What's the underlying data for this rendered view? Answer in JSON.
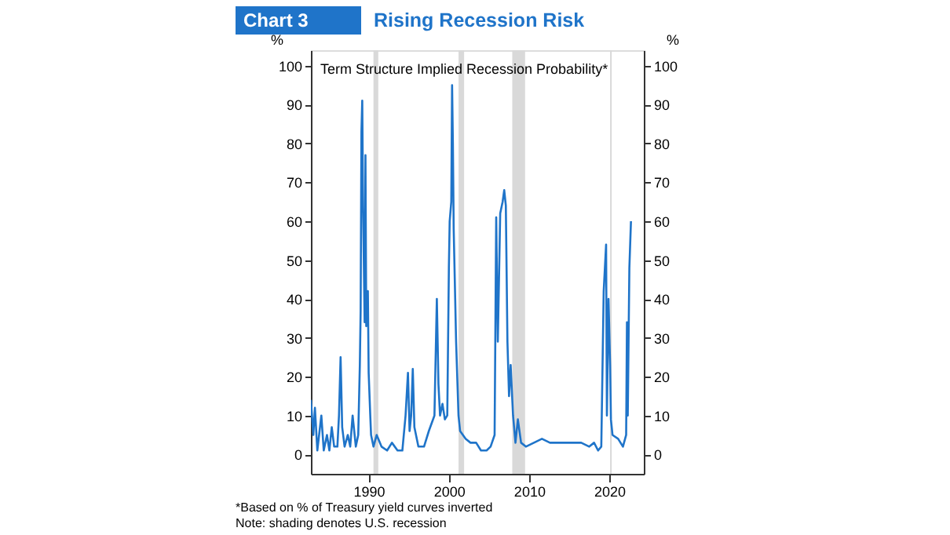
{
  "chart_data": {
    "type": "line",
    "title": "Rising Recession Risk",
    "subtitle": "Term Structure Implied Recession Probability*",
    "ylabel": "%",
    "y2label": "%",
    "annotations": [
      "Chart 3",
      "*Based on % of Treasury yield curves inverted",
      "Note: shading denotes U.S. recession"
    ],
    "series": [
      {
        "color": "#1f74c9",
        "x": [
          1982.8,
          1983.1,
          1983.3,
          1983.6,
          1984.1,
          1984.4,
          1984.8,
          1985.1,
          1985.4,
          1985.7,
          1986.1,
          1986.3,
          1986.5,
          1986.7,
          1987.0,
          1987.4,
          1987.7,
          1988.0,
          1988.4,
          1988.7,
          1988.9,
          1989.0,
          1989.1,
          1989.2,
          1989.3,
          1989.5,
          1989.6,
          1989.7,
          1989.9,
          1990.0,
          1990.2,
          1990.3,
          1990.6,
          1991.0,
          1991.6,
          1992.3,
          1992.9,
          1993.6,
          1994.2,
          1994.6,
          1994.9,
          1995.1,
          1995.3,
          1995.5,
          1995.7,
          1996.2,
          1996.9,
          1997.5,
          1998.2,
          1998.5,
          1998.7,
          1998.9,
          1999.2,
          1999.5,
          1999.8,
          2000.0,
          2000.1,
          2000.3,
          2000.4,
          2000.5,
          2000.6,
          2000.9,
          2001.2,
          2001.4,
          2002.1,
          2002.7,
          2003.4,
          2004.0,
          2004.7,
          2005.2,
          2005.7,
          2005.9,
          2006.1,
          2006.4,
          2006.7,
          2006.9,
          2007.1,
          2007.3,
          2007.5,
          2007.7,
          2008.0,
          2008.3,
          2008.6,
          2009.0,
          2009.6,
          2010.6,
          2011.6,
          2012.6,
          2013.9,
          2015.2,
          2016.5,
          2017.5,
          2018.1,
          2018.6,
          2019.0,
          2019.3,
          2019.6,
          2019.7,
          2019.9,
          2020.1,
          2020.2,
          2020.4,
          2021.1,
          2021.7,
          2022.1,
          2022.2,
          2022.3,
          2022.5,
          2022.7
        ],
        "values": [
          14,
          5,
          12,
          1,
          10,
          1,
          5,
          1,
          7,
          2,
          2,
          10,
          25,
          7,
          2,
          5,
          2,
          10,
          2,
          5,
          23,
          37,
          83,
          91,
          64,
          34,
          77,
          33,
          42,
          21,
          10,
          5,
          2,
          5,
          2,
          1,
          3,
          1,
          1,
          10,
          21,
          6,
          10,
          22,
          7,
          2,
          2,
          6,
          10,
          40,
          18,
          10,
          13,
          9,
          10,
          48,
          60,
          65,
          95,
          80,
          58,
          29,
          10,
          6,
          4,
          3,
          3,
          1,
          1,
          2,
          5,
          61,
          29,
          62,
          65,
          68,
          64,
          29,
          15,
          23,
          10,
          3,
          9,
          3,
          2,
          3,
          4,
          3,
          3,
          3,
          3,
          2,
          3,
          1,
          2,
          42,
          54,
          10,
          40,
          23,
          9,
          5,
          4,
          2,
          5,
          34,
          10,
          48,
          60
        ]
      }
    ],
    "xlim": [
      1982.8,
      2024.3
    ],
    "xticks": [
      1990,
      2000,
      2010,
      2020
    ],
    "ylim": [
      -5,
      104
    ],
    "yticks": [
      0,
      10,
      20,
      30,
      40,
      50,
      60,
      70,
      80,
      90,
      100
    ],
    "y2lim": [
      -5,
      104
    ],
    "y2ticks": [
      0,
      10,
      20,
      30,
      40,
      50,
      60,
      70,
      80,
      90,
      100
    ],
    "bands": [
      {
        "axis": "x",
        "from": 1990.6,
        "to": 1991.2,
        "color": "#d9d9d9"
      },
      {
        "axis": "x",
        "from": 2001.2,
        "to": 2001.9,
        "color": "#d9d9d9"
      },
      {
        "axis": "x",
        "from": 2007.9,
        "to": 2009.5,
        "color": "#d9d9d9"
      },
      {
        "axis": "x",
        "from": 2020.1,
        "to": 2020.3,
        "color": "#d9d9d9"
      }
    ],
    "grid": false,
    "line_style": "solid"
  }
}
